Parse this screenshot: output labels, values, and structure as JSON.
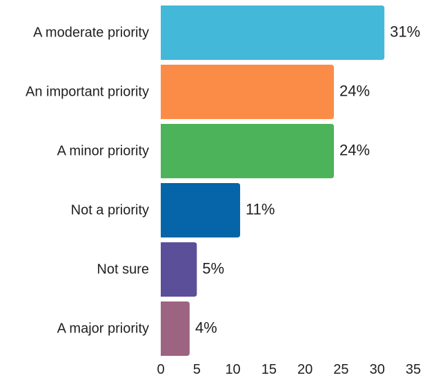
{
  "chart_data": {
    "type": "bar",
    "orientation": "horizontal",
    "categories": [
      "A moderate priority",
      "An important priority",
      "A minor priority",
      "Not a priority",
      "Not sure",
      "A major priority"
    ],
    "values": [
      31,
      24,
      24,
      11,
      5,
      4
    ],
    "value_labels": [
      "31%",
      "24%",
      "24%",
      "11%",
      "5%",
      "4%"
    ],
    "colors": [
      "#43b8d8",
      "#fb8c47",
      "#4db35a",
      "#0565a8",
      "#5b4f9a",
      "#9c6480"
    ],
    "x_ticks": [
      "0",
      "5",
      "10",
      "15",
      "20",
      "25",
      "30",
      "35"
    ],
    "xlim": [
      0,
      35
    ],
    "grid": false,
    "legend": "none",
    "title": "",
    "xlabel": "",
    "ylabel": ""
  }
}
